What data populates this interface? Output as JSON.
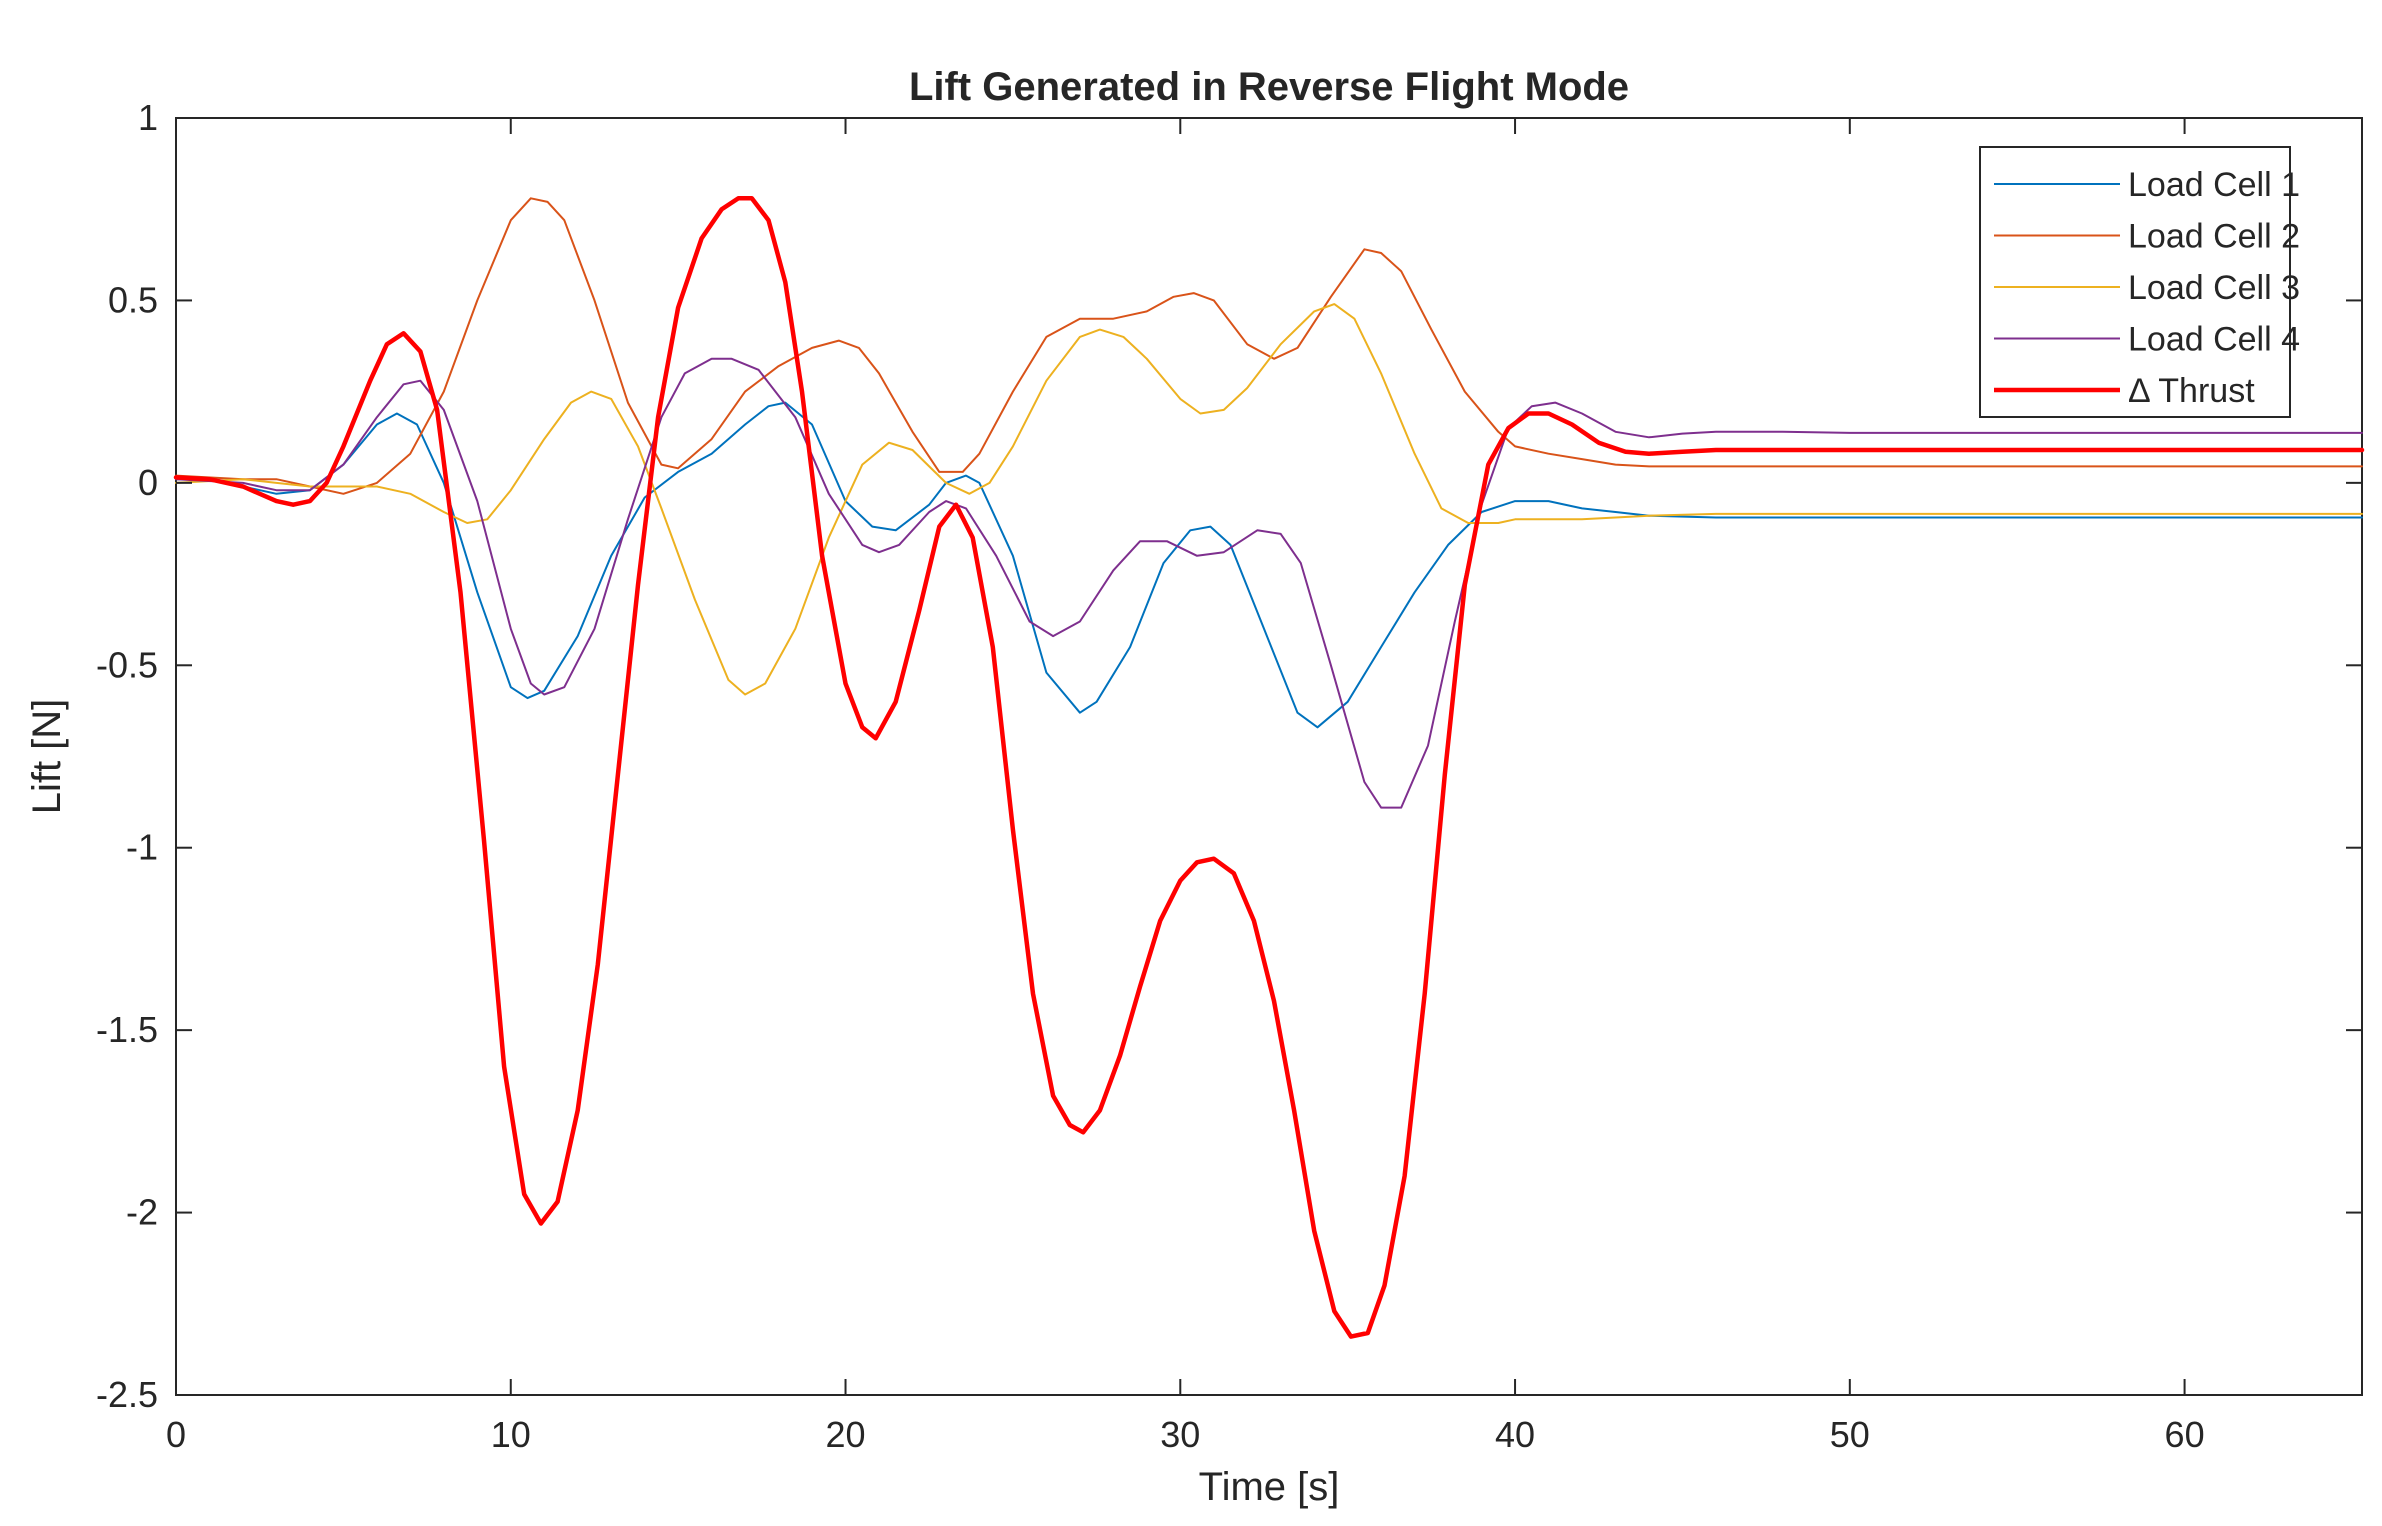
{
  "chart_data": {
    "type": "line",
    "title": "Lift Generated in Reverse Flight Mode",
    "xlabel": "Time [s]",
    "ylabel": "Lift [N]",
    "xlim": [
      0,
      65.3
    ],
    "ylim": [
      -2.5,
      1
    ],
    "xticks": [
      0,
      10,
      20,
      30,
      40,
      50,
      60
    ],
    "yticks": [
      1,
      0.5,
      0,
      -0.5,
      -1,
      -1.5,
      -2,
      -2.5
    ],
    "xtick_labels": [
      "0",
      "10",
      "20",
      "30",
      "40",
      "50",
      "60"
    ],
    "ytick_labels": [
      "1",
      "0.5",
      "0",
      "-0.5",
      "-1",
      "-1.5",
      "-2",
      "-2.5"
    ],
    "grid": false,
    "legend_position": "top-right",
    "series": [
      {
        "name": "Load Cell 1",
        "color": "#0072BD",
        "width": "thin",
        "points": [
          [
            0,
            0.01
          ],
          [
            1,
            0.01
          ],
          [
            2,
            -0.01
          ],
          [
            3,
            -0.03
          ],
          [
            4,
            -0.02
          ],
          [
            5,
            0.05
          ],
          [
            6,
            0.16
          ],
          [
            6.6,
            0.19
          ],
          [
            7.2,
            0.16
          ],
          [
            8,
            0.0
          ],
          [
            9,
            -0.3
          ],
          [
            10,
            -0.56
          ],
          [
            10.5,
            -0.59
          ],
          [
            11,
            -0.57
          ],
          [
            12,
            -0.42
          ],
          [
            13,
            -0.2
          ],
          [
            14,
            -0.04
          ],
          [
            15,
            0.03
          ],
          [
            16,
            0.08
          ],
          [
            17,
            0.16
          ],
          [
            17.7,
            0.21
          ],
          [
            18.2,
            0.22
          ],
          [
            19,
            0.16
          ],
          [
            20,
            -0.05
          ],
          [
            20.8,
            -0.12
          ],
          [
            21.5,
            -0.13
          ],
          [
            22.5,
            -0.06
          ],
          [
            23,
            0.0
          ],
          [
            23.6,
            0.02
          ],
          [
            24,
            0.0
          ],
          [
            25,
            -0.2
          ],
          [
            26,
            -0.52
          ],
          [
            27,
            -0.63
          ],
          [
            27.5,
            -0.6
          ],
          [
            28.5,
            -0.45
          ],
          [
            29.5,
            -0.22
          ],
          [
            30.3,
            -0.13
          ],
          [
            30.9,
            -0.12
          ],
          [
            31.5,
            -0.17
          ],
          [
            32.5,
            -0.4
          ],
          [
            33.5,
            -0.63
          ],
          [
            34.1,
            -0.67
          ],
          [
            35,
            -0.6
          ],
          [
            36,
            -0.45
          ],
          [
            37,
            -0.3
          ],
          [
            38,
            -0.17
          ],
          [
            39,
            -0.08
          ],
          [
            40,
            -0.05
          ],
          [
            41,
            -0.05
          ],
          [
            42,
            -0.07
          ],
          [
            43,
            -0.08
          ],
          [
            44,
            -0.09
          ],
          [
            46,
            -0.095
          ],
          [
            50,
            -0.095
          ],
          [
            55,
            -0.095
          ],
          [
            60,
            -0.095
          ],
          [
            65.3,
            -0.095
          ]
        ]
      },
      {
        "name": "Load Cell 2",
        "color": "#D95319",
        "width": "thin",
        "points": [
          [
            0,
            0.02
          ],
          [
            2,
            0.01
          ],
          [
            3,
            0.01
          ],
          [
            4,
            -0.01
          ],
          [
            5,
            -0.03
          ],
          [
            6,
            0.0
          ],
          [
            7,
            0.08
          ],
          [
            8,
            0.25
          ],
          [
            9,
            0.5
          ],
          [
            10,
            0.72
          ],
          [
            10.6,
            0.78
          ],
          [
            11.1,
            0.77
          ],
          [
            11.6,
            0.72
          ],
          [
            12.5,
            0.5
          ],
          [
            13.5,
            0.22
          ],
          [
            14.5,
            0.05
          ],
          [
            15,
            0.04
          ],
          [
            16,
            0.12
          ],
          [
            17,
            0.25
          ],
          [
            18,
            0.32
          ],
          [
            19,
            0.37
          ],
          [
            19.8,
            0.39
          ],
          [
            20.4,
            0.37
          ],
          [
            21,
            0.3
          ],
          [
            22,
            0.14
          ],
          [
            22.8,
            0.03
          ],
          [
            23.5,
            0.03
          ],
          [
            24,
            0.08
          ],
          [
            25,
            0.25
          ],
          [
            26,
            0.4
          ],
          [
            27,
            0.45
          ],
          [
            28,
            0.45
          ],
          [
            29,
            0.47
          ],
          [
            29.8,
            0.51
          ],
          [
            30.4,
            0.52
          ],
          [
            31,
            0.5
          ],
          [
            32,
            0.38
          ],
          [
            32.8,
            0.34
          ],
          [
            33.5,
            0.37
          ],
          [
            34.5,
            0.51
          ],
          [
            35.5,
            0.64
          ],
          [
            36,
            0.63
          ],
          [
            36.6,
            0.58
          ],
          [
            37.5,
            0.42
          ],
          [
            38.5,
            0.25
          ],
          [
            39.5,
            0.14
          ],
          [
            40,
            0.1
          ],
          [
            41,
            0.08
          ],
          [
            42,
            0.065
          ],
          [
            43,
            0.05
          ],
          [
            44,
            0.045
          ],
          [
            46,
            0.045
          ],
          [
            50,
            0.045
          ],
          [
            55,
            0.045
          ],
          [
            60,
            0.045
          ],
          [
            65.3,
            0.045
          ]
        ]
      },
      {
        "name": "Load Cell 3",
        "color": "#EDB120",
        "width": "thin",
        "points": [
          [
            0,
            0.0
          ],
          [
            2,
            0.01
          ],
          [
            3,
            0.0
          ],
          [
            4,
            -0.01
          ],
          [
            5,
            -0.01
          ],
          [
            6,
            -0.01
          ],
          [
            7,
            -0.03
          ],
          [
            8,
            -0.08
          ],
          [
            8.7,
            -0.11
          ],
          [
            9.3,
            -0.1
          ],
          [
            10,
            -0.02
          ],
          [
            11,
            0.12
          ],
          [
            11.8,
            0.22
          ],
          [
            12.4,
            0.25
          ],
          [
            13,
            0.23
          ],
          [
            13.8,
            0.1
          ],
          [
            14.5,
            -0.07
          ],
          [
            15.5,
            -0.32
          ],
          [
            16.5,
            -0.54
          ],
          [
            17,
            -0.58
          ],
          [
            17.6,
            -0.55
          ],
          [
            18.5,
            -0.4
          ],
          [
            19.5,
            -0.15
          ],
          [
            20.5,
            0.05
          ],
          [
            21.3,
            0.11
          ],
          [
            22,
            0.09
          ],
          [
            23,
            0.0
          ],
          [
            23.7,
            -0.03
          ],
          [
            24.3,
            0.0
          ],
          [
            25,
            0.1
          ],
          [
            26,
            0.28
          ],
          [
            27,
            0.4
          ],
          [
            27.6,
            0.42
          ],
          [
            28.3,
            0.4
          ],
          [
            29,
            0.34
          ],
          [
            30,
            0.23
          ],
          [
            30.6,
            0.19
          ],
          [
            31.3,
            0.2
          ],
          [
            32,
            0.26
          ],
          [
            33,
            0.38
          ],
          [
            34,
            0.47
          ],
          [
            34.6,
            0.49
          ],
          [
            35.2,
            0.45
          ],
          [
            36,
            0.3
          ],
          [
            37,
            0.08
          ],
          [
            37.8,
            -0.07
          ],
          [
            38.6,
            -0.11
          ],
          [
            39.5,
            -0.11
          ],
          [
            40,
            -0.1
          ],
          [
            41,
            -0.1
          ],
          [
            42,
            -0.1
          ],
          [
            43,
            -0.095
          ],
          [
            44,
            -0.09
          ],
          [
            46,
            -0.085
          ],
          [
            50,
            -0.085
          ],
          [
            55,
            -0.085
          ],
          [
            60,
            -0.085
          ],
          [
            65.3,
            -0.085
          ]
        ]
      },
      {
        "name": "Load Cell 4",
        "color": "#7E2F8E",
        "width": "thin",
        "points": [
          [
            0,
            0.01
          ],
          [
            2,
            0.0
          ],
          [
            3,
            -0.02
          ],
          [
            4,
            -0.02
          ],
          [
            5,
            0.05
          ],
          [
            6,
            0.18
          ],
          [
            6.8,
            0.27
          ],
          [
            7.3,
            0.28
          ],
          [
            8,
            0.2
          ],
          [
            9,
            -0.05
          ],
          [
            10,
            -0.4
          ],
          [
            10.6,
            -0.55
          ],
          [
            11,
            -0.58
          ],
          [
            11.6,
            -0.56
          ],
          [
            12.5,
            -0.4
          ],
          [
            13.5,
            -0.1
          ],
          [
            14.5,
            0.18
          ],
          [
            15.2,
            0.3
          ],
          [
            16,
            0.34
          ],
          [
            16.6,
            0.34
          ],
          [
            17.4,
            0.31
          ],
          [
            18.5,
            0.18
          ],
          [
            19.5,
            -0.03
          ],
          [
            20.5,
            -0.17
          ],
          [
            21,
            -0.19
          ],
          [
            21.6,
            -0.17
          ],
          [
            22.5,
            -0.08
          ],
          [
            23,
            -0.05
          ],
          [
            23.6,
            -0.07
          ],
          [
            24.5,
            -0.2
          ],
          [
            25.5,
            -0.38
          ],
          [
            26.2,
            -0.42
          ],
          [
            27,
            -0.38
          ],
          [
            28,
            -0.24
          ],
          [
            28.8,
            -0.16
          ],
          [
            29.6,
            -0.16
          ],
          [
            30.5,
            -0.2
          ],
          [
            31.3,
            -0.19
          ],
          [
            32.3,
            -0.13
          ],
          [
            33,
            -0.14
          ],
          [
            33.6,
            -0.22
          ],
          [
            34.5,
            -0.5
          ],
          [
            35.5,
            -0.82
          ],
          [
            36,
            -0.89
          ],
          [
            36.6,
            -0.89
          ],
          [
            37.4,
            -0.72
          ],
          [
            38.2,
            -0.38
          ],
          [
            39,
            -0.06
          ],
          [
            39.8,
            0.15
          ],
          [
            40.5,
            0.21
          ],
          [
            41.2,
            0.22
          ],
          [
            42,
            0.19
          ],
          [
            43,
            0.14
          ],
          [
            44,
            0.125
          ],
          [
            45,
            0.135
          ],
          [
            46,
            0.14
          ],
          [
            48,
            0.14
          ],
          [
            50,
            0.137
          ],
          [
            55,
            0.137
          ],
          [
            60,
            0.137
          ],
          [
            65.3,
            0.137
          ]
        ]
      },
      {
        "name": "Δ Thrust",
        "color": "#FF0000",
        "width": "thick",
        "points": [
          [
            0,
            0.015
          ],
          [
            1,
            0.01
          ],
          [
            2,
            -0.01
          ],
          [
            3,
            -0.05
          ],
          [
            3.5,
            -0.06
          ],
          [
            4,
            -0.05
          ],
          [
            4.5,
            0.0
          ],
          [
            5,
            0.1
          ],
          [
            5.8,
            0.28
          ],
          [
            6.3,
            0.38
          ],
          [
            6.8,
            0.41
          ],
          [
            7.3,
            0.36
          ],
          [
            7.8,
            0.2
          ],
          [
            8.5,
            -0.3
          ],
          [
            9.2,
            -0.98
          ],
          [
            9.8,
            -1.6
          ],
          [
            10.4,
            -1.95
          ],
          [
            10.9,
            -2.03
          ],
          [
            11.4,
            -1.97
          ],
          [
            12,
            -1.72
          ],
          [
            12.6,
            -1.32
          ],
          [
            13.2,
            -0.8
          ],
          [
            13.8,
            -0.28
          ],
          [
            14.4,
            0.18
          ],
          [
            15,
            0.48
          ],
          [
            15.7,
            0.67
          ],
          [
            16.3,
            0.75
          ],
          [
            16.8,
            0.78
          ],
          [
            17.2,
            0.78
          ],
          [
            17.7,
            0.72
          ],
          [
            18.2,
            0.55
          ],
          [
            18.7,
            0.25
          ],
          [
            19.3,
            -0.2
          ],
          [
            20,
            -0.55
          ],
          [
            20.5,
            -0.67
          ],
          [
            20.9,
            -0.7
          ],
          [
            21.5,
            -0.6
          ],
          [
            22.2,
            -0.35
          ],
          [
            22.8,
            -0.12
          ],
          [
            23.3,
            -0.06
          ],
          [
            23.8,
            -0.15
          ],
          [
            24.4,
            -0.45
          ],
          [
            25,
            -0.95
          ],
          [
            25.6,
            -1.4
          ],
          [
            26.2,
            -1.68
          ],
          [
            26.7,
            -1.76
          ],
          [
            27.1,
            -1.78
          ],
          [
            27.6,
            -1.72
          ],
          [
            28.2,
            -1.57
          ],
          [
            28.8,
            -1.38
          ],
          [
            29.4,
            -1.2
          ],
          [
            30,
            -1.09
          ],
          [
            30.5,
            -1.04
          ],
          [
            31,
            -1.03
          ],
          [
            31.6,
            -1.07
          ],
          [
            32.2,
            -1.2
          ],
          [
            32.8,
            -1.42
          ],
          [
            33.4,
            -1.72
          ],
          [
            34,
            -2.05
          ],
          [
            34.6,
            -2.27
          ],
          [
            35.1,
            -2.34
          ],
          [
            35.6,
            -2.33
          ],
          [
            36.1,
            -2.2
          ],
          [
            36.7,
            -1.9
          ],
          [
            37.3,
            -1.4
          ],
          [
            37.9,
            -0.8
          ],
          [
            38.5,
            -0.28
          ],
          [
            39.2,
            0.05
          ],
          [
            39.8,
            0.15
          ],
          [
            40.4,
            0.19
          ],
          [
            41,
            0.19
          ],
          [
            41.7,
            0.16
          ],
          [
            42.5,
            0.11
          ],
          [
            43.3,
            0.085
          ],
          [
            44,
            0.08
          ],
          [
            45,
            0.085
          ],
          [
            46,
            0.09
          ],
          [
            48,
            0.09
          ],
          [
            50,
            0.09
          ],
          [
            55,
            0.09
          ],
          [
            60,
            0.09
          ],
          [
            65.3,
            0.09
          ]
        ]
      }
    ]
  }
}
